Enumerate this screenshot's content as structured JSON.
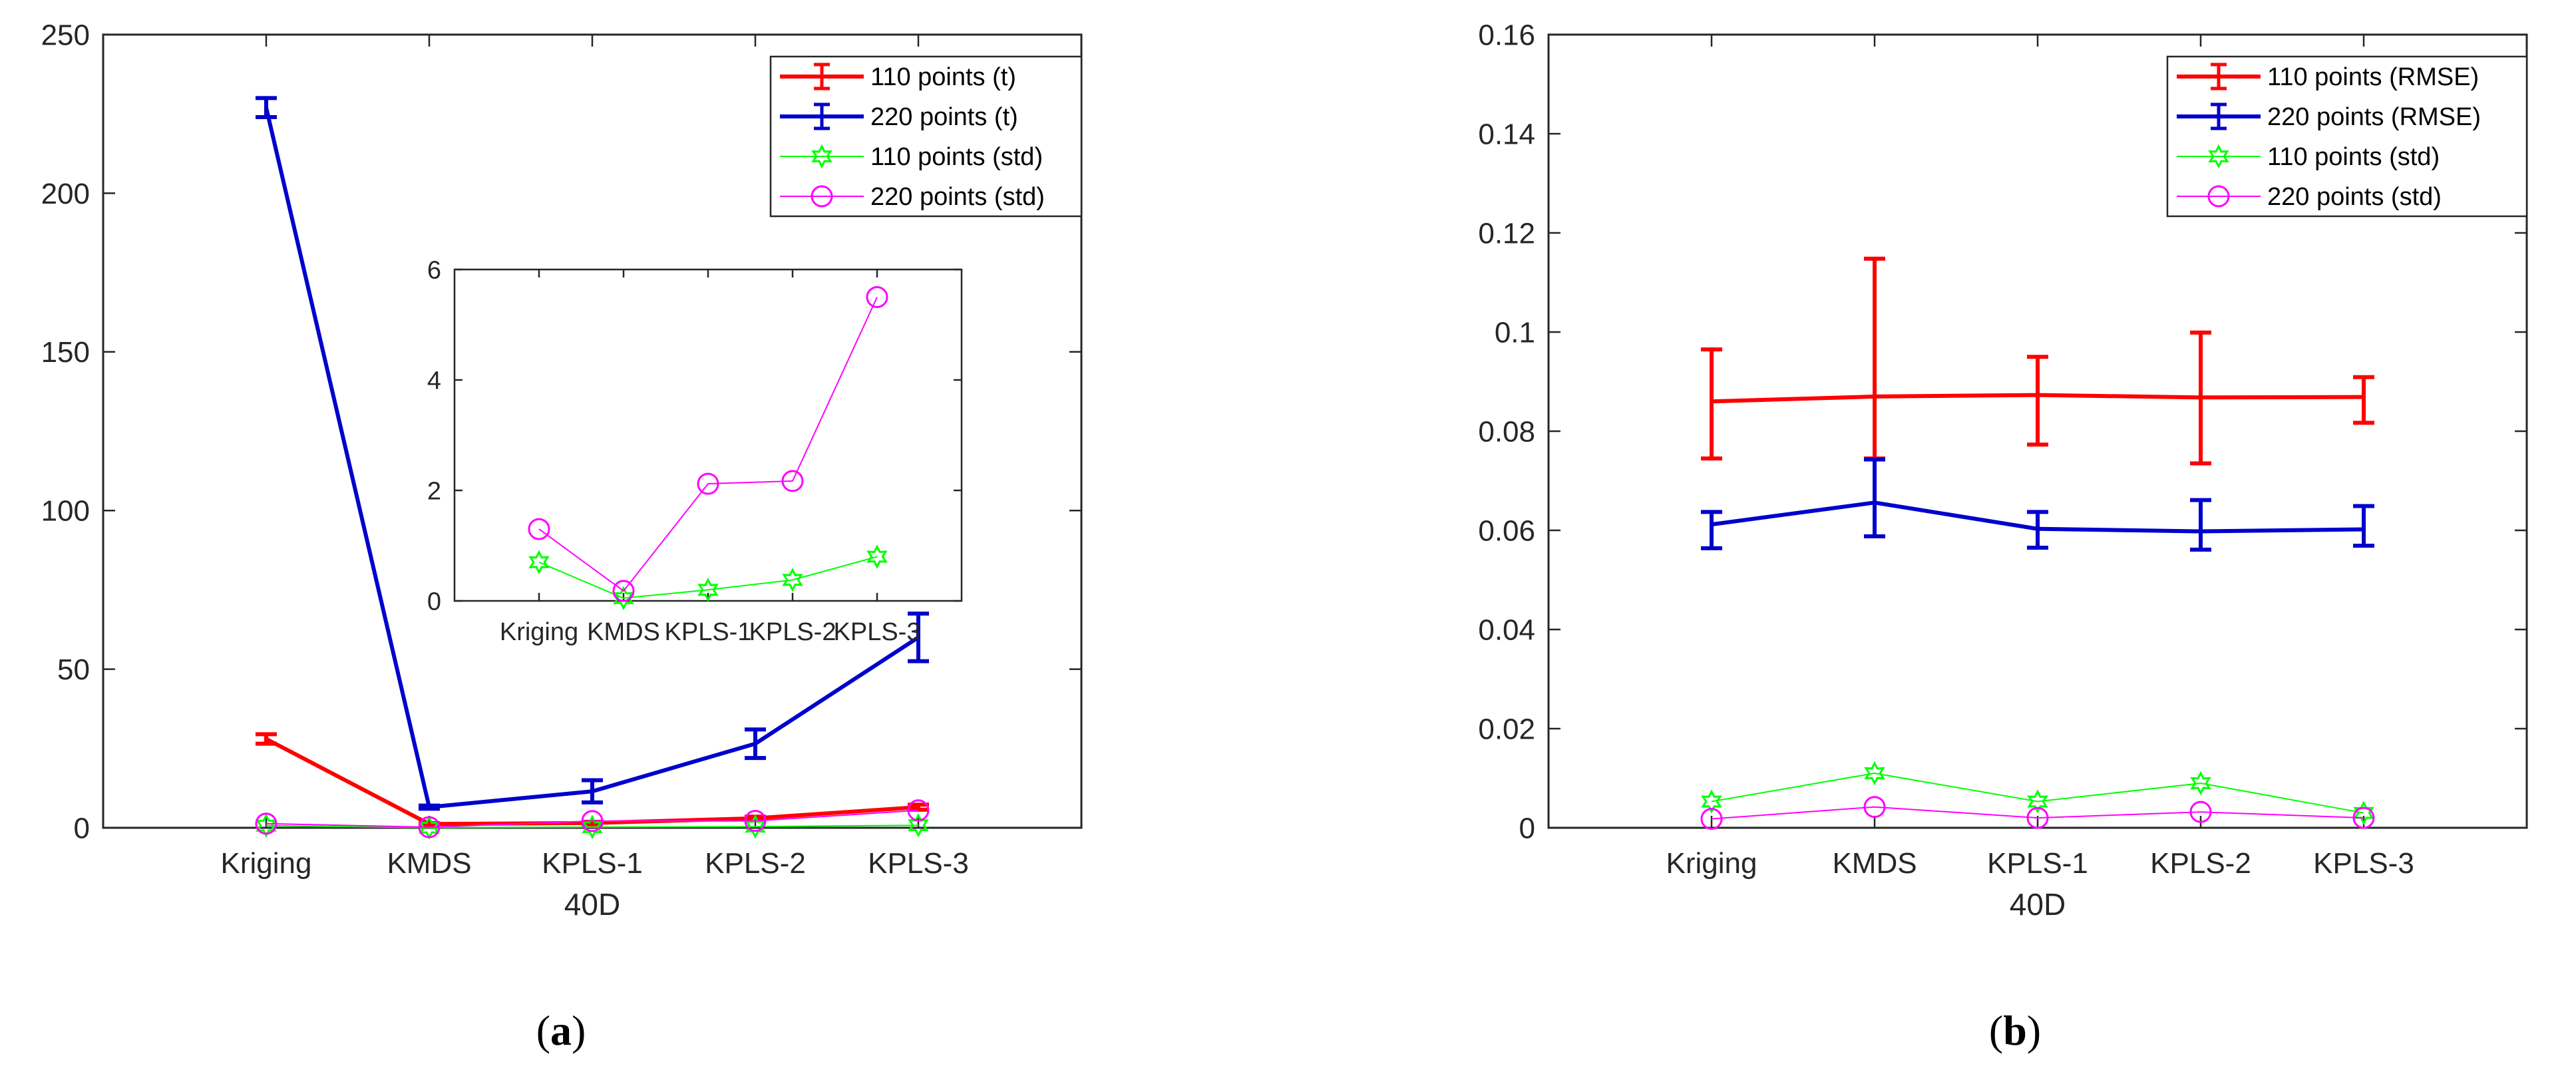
{
  "figure": {
    "captions": [
      {
        "open": "(",
        "letter": "a",
        "close": ")"
      },
      {
        "open": "(",
        "letter": "b",
        "close": ")"
      }
    ]
  },
  "chart_data": [
    {
      "id": "a",
      "type": "line",
      "title": "",
      "xlabel": "40D",
      "ylabel": "",
      "categories": [
        "Kriging",
        "KMDS",
        "KPLS-1",
        "KPLS-2",
        "KPLS-3"
      ],
      "ylim": [
        0,
        250
      ],
      "yticks": [
        0,
        50,
        100,
        150,
        200,
        250
      ],
      "ytick_labels": [
        "0",
        "50",
        "100",
        "150",
        "200",
        "250"
      ],
      "grid": false,
      "legend_position": "top-right",
      "series": [
        {
          "name": "110 points (t)",
          "color": "#ff0000",
          "style": "errorbar",
          "values": [
            28,
            1.2,
            1.5,
            3,
            6.5
          ],
          "err_low": [
            1.5,
            0.3,
            0.4,
            0.5,
            0.8
          ],
          "err_high": [
            1.5,
            0.3,
            0.4,
            0.5,
            0.8
          ]
        },
        {
          "name": "220 points (t)",
          "color": "#0000cd",
          "style": "errorbar",
          "values": [
            227,
            6.5,
            11.5,
            26.5,
            60
          ],
          "err_low": [
            3,
            0.5,
            3.5,
            4.5,
            7.5
          ],
          "err_high": [
            3,
            0.5,
            3.5,
            4.5,
            7.5
          ]
        },
        {
          "name": "110 points (std)",
          "color": "#00ff00",
          "style": "hexagram",
          "values": [
            0.7,
            0.05,
            0.2,
            0.38,
            0.8
          ]
        },
        {
          "name": "220 points (std)",
          "color": "#ff00ff",
          "style": "circle",
          "values": [
            1.3,
            0.18,
            2.12,
            2.17,
            5.5
          ]
        }
      ],
      "inset": {
        "categories": [
          "Kriging",
          "KMDS",
          "KPLS-1",
          "KPLS-2",
          "KPLS-3"
        ],
        "ylim": [
          0,
          6
        ],
        "yticks": [
          0,
          2,
          4,
          6
        ],
        "ytick_labels": [
          "0",
          "2",
          "4",
          "6"
        ],
        "series": [
          {
            "name": "110 points (std)",
            "color": "#00ff00",
            "style": "hexagram",
            "values": [
              0.7,
              0.05,
              0.2,
              0.38,
              0.8
            ]
          },
          {
            "name": "220 points (std)",
            "color": "#ff00ff",
            "style": "circle",
            "values": [
              1.3,
              0.18,
              2.12,
              2.17,
              5.5
            ]
          }
        ]
      }
    },
    {
      "id": "b",
      "type": "line",
      "title": "",
      "xlabel": "40D",
      "ylabel": "",
      "categories": [
        "Kriging",
        "KMDS",
        "KPLS-1",
        "KPLS-2",
        "KPLS-3"
      ],
      "ylim": [
        0,
        0.16
      ],
      "yticks": [
        0,
        0.02,
        0.04,
        0.06,
        0.08,
        0.1,
        0.12,
        0.14,
        0.16
      ],
      "ytick_labels": [
        "0",
        "0.02",
        "0.04",
        "0.06",
        "0.08",
        "0.1",
        "0.12",
        "0.14",
        "0.16"
      ],
      "grid": false,
      "legend_position": "top-right",
      "series": [
        {
          "name": "110 points (RMSE)",
          "color": "#ff0000",
          "style": "errorbar",
          "values": [
            0.086,
            0.087,
            0.0873,
            0.0868,
            0.0869
          ],
          "err_low": [
            0.0115,
            0.0125,
            0.01,
            0.0133,
            0.0052
          ],
          "err_high": [
            0.0105,
            0.0278,
            0.0077,
            0.0131,
            0.004
          ]
        },
        {
          "name": "220 points (RMSE)",
          "color": "#0000cd",
          "style": "errorbar",
          "values": [
            0.0612,
            0.0656,
            0.0603,
            0.0598,
            0.0602
          ],
          "err_low": [
            0.0048,
            0.0068,
            0.0038,
            0.0037,
            0.0033
          ],
          "err_high": [
            0.0025,
            0.0087,
            0.0034,
            0.0063,
            0.0047
          ]
        },
        {
          "name": "110 points (std)",
          "color": "#00ff00",
          "style": "hexagram",
          "values": [
            0.0053,
            0.011,
            0.0053,
            0.009,
            0.003
          ]
        },
        {
          "name": "220 points (std)",
          "color": "#ff00ff",
          "style": "circle",
          "values": [
            0.0018,
            0.0042,
            0.002,
            0.0032,
            0.002
          ]
        }
      ]
    }
  ]
}
